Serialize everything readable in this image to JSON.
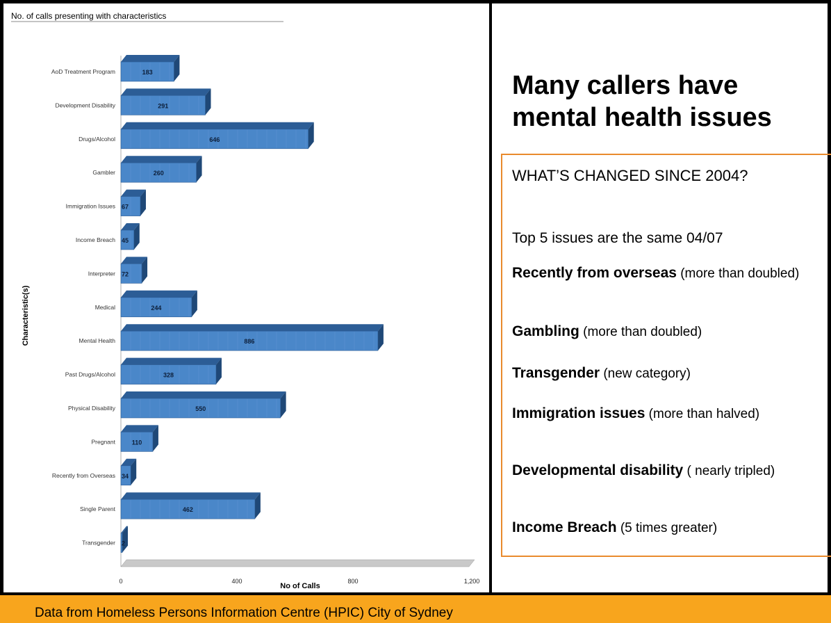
{
  "chart_data": {
    "type": "bar",
    "orientation": "horizontal",
    "title": "No. of calls presenting with characteristics",
    "xlabel": "No of Calls",
    "ylabel": "Characteristic(s)",
    "xlim": [
      0,
      1200
    ],
    "xticks": [
      "0",
      "400",
      "800",
      "1,200"
    ],
    "categories": [
      "AoD Treatment Program",
      "Development Disability",
      "Drugs/Alcohol",
      "Gambler",
      "Immigration Issues",
      "Income Breach",
      "Interpreter",
      "Medical",
      "Mental Health",
      "Past Drugs/Alcohol",
      "Physical Disability",
      "Pregnant",
      "Recently from Overseas",
      "Single Parent",
      "Transgender"
    ],
    "values": [
      183,
      291,
      646,
      260,
      67,
      45,
      72,
      244,
      886,
      328,
      550,
      110,
      34,
      462,
      2
    ],
    "grid": false,
    "legend": "none",
    "bar_color": "#4a87c9",
    "bar_top_color": "#2c5d96",
    "bar_side_color": "#1f4877"
  },
  "panel": {
    "headline": "Many callers have mental health issues",
    "question": "WHAT’S CHANGED SINCE 2004?",
    "top5": "Top 5 issues are the same 04/07",
    "items": [
      {
        "bold": "Recently from overseas",
        "rest": " (more than doubled)"
      },
      {
        "bold": "Gambling",
        "rest": "  (more than doubled)"
      },
      {
        "bold": "Transgender",
        "rest": "  (new category)"
      },
      {
        "bold": "Immigration issues",
        "rest": "  (more than halved)"
      },
      {
        "bold": "Developmental disability",
        "rest": " ( nearly tripled)"
      },
      {
        "bold": "Income Breach",
        "rest": " (5 times greater)"
      }
    ],
    "border_color": "#e98a2c"
  },
  "footer": {
    "text": "Data from Homeless Persons Information Centre (HPIC) City of Sydney",
    "color": "#f8a51d"
  }
}
